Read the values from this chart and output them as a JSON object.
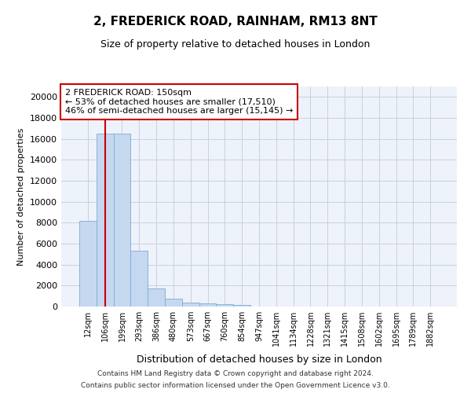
{
  "title": "2, FREDERICK ROAD, RAINHAM, RM13 8NT",
  "subtitle": "Size of property relative to detached houses in London",
  "xlabel": "Distribution of detached houses by size in London",
  "ylabel": "Number of detached properties",
  "categories": [
    "12sqm",
    "106sqm",
    "199sqm",
    "293sqm",
    "386sqm",
    "480sqm",
    "573sqm",
    "667sqm",
    "760sqm",
    "854sqm",
    "947sqm",
    "1041sqm",
    "1134sqm",
    "1228sqm",
    "1321sqm",
    "1415sqm",
    "1508sqm",
    "1602sqm",
    "1695sqm",
    "1789sqm",
    "1882sqm"
  ],
  "values": [
    8200,
    16500,
    16500,
    5300,
    1750,
    730,
    340,
    270,
    200,
    140,
    0,
    0,
    0,
    0,
    0,
    0,
    0,
    0,
    0,
    0,
    0
  ],
  "bar_color": "#c5d8f0",
  "bar_edge_color": "#7aadd4",
  "vline_x": 1.0,
  "vline_color": "#cc0000",
  "annotation_title": "2 FREDERICK ROAD: 150sqm",
  "annotation_line1": "← 53% of detached houses are smaller (17,510)",
  "annotation_line2": "46% of semi-detached houses are larger (15,145) →",
  "annotation_box_color": "#ffffff",
  "annotation_box_edge": "#cc0000",
  "ylim": [
    0,
    21000
  ],
  "yticks": [
    0,
    2000,
    4000,
    6000,
    8000,
    10000,
    12000,
    14000,
    16000,
    18000,
    20000
  ],
  "footer_line1": "Contains HM Land Registry data © Crown copyright and database right 2024.",
  "footer_line2": "Contains public sector information licensed under the Open Government Licence v3.0.",
  "background_color": "#ffffff",
  "ax_background": "#eef2fa",
  "grid_color": "#c8d0e0"
}
